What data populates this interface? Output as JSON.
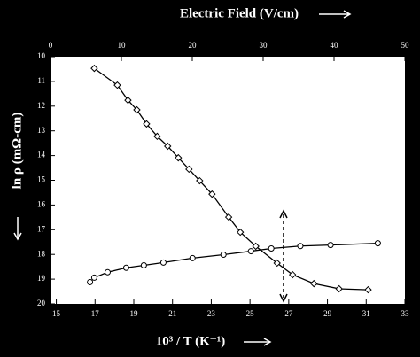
{
  "chart_data": {
    "type": "line",
    "top_axis_label": "Electric Field (V/cm)",
    "x_axis_label": "10³ / T (K⁻¹)",
    "y_axis_label": "ln ρ (mΩ-cm)",
    "xlim": [
      14.7,
      33
    ],
    "xticks": [
      15,
      17,
      19,
      21,
      23,
      25,
      27,
      29,
      31,
      33
    ],
    "x2lim": [
      0,
      50
    ],
    "x2ticks": [
      0,
      10,
      20,
      30,
      40,
      50
    ],
    "ylim": [
      10,
      20
    ],
    "yticks": [
      10,
      11,
      12,
      13,
      14,
      15,
      16,
      17,
      18,
      19,
      20
    ],
    "series": [
      {
        "color": "#ffffff",
        "marker": "diamond",
        "x": [
          16.96,
          18.15,
          18.7,
          19.16,
          19.66,
          20.21,
          20.75,
          21.3,
          21.85,
          22.4,
          23.04,
          23.9,
          24.5,
          25.3,
          26.4,
          27.2,
          28.3,
          29.6,
          31.1
        ],
        "values": [
          10.47,
          11.15,
          11.76,
          12.15,
          12.72,
          13.22,
          13.62,
          14.09,
          14.55,
          15.02,
          15.56,
          16.49,
          17.1,
          17.67,
          18.35,
          18.82,
          19.18,
          19.39,
          19.43
        ]
      },
      {
        "color": "#ffffff",
        "marker": "circle",
        "x": [
          16.74,
          16.96,
          17.65,
          18.61,
          19.52,
          20.53,
          22.03,
          23.63,
          25.05,
          26.1,
          27.6,
          29.16,
          31.6
        ],
        "values": [
          19.12,
          18.94,
          18.72,
          18.54,
          18.44,
          18.33,
          18.15,
          18.01,
          17.87,
          17.76,
          17.66,
          17.62,
          17.55
        ]
      }
    ]
  }
}
